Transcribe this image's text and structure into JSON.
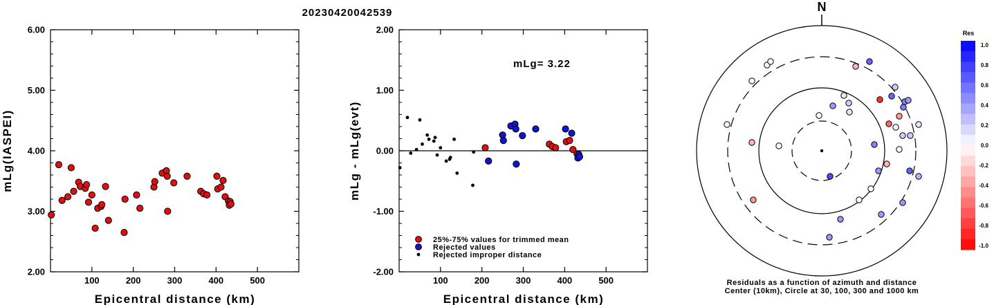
{
  "title": "20230420042539",
  "chart_data": [
    {
      "type": "scatter",
      "xlabel": "Epicentral distance (km)",
      "ylabel": "mLg(IASPEI)",
      "xlim": [
        0,
        600
      ],
      "ylim": [
        2.0,
        6.0
      ],
      "xticks": [
        "100",
        "200",
        "300",
        "400",
        "500"
      ],
      "yticks": [
        "2.00",
        "3.00",
        "4.00",
        "5.00",
        "6.00"
      ],
      "series": [
        {
          "color": "#e01010",
          "points": [
            [
              2,
              2.94
            ],
            [
              20,
              3.77
            ],
            [
              28,
              3.18
            ],
            [
              42,
              3.24
            ],
            [
              50,
              3.72
            ],
            [
              56,
              3.33
            ],
            [
              68,
              3.48
            ],
            [
              72,
              3.41
            ],
            [
              84,
              3.38
            ],
            [
              87,
              3.44
            ],
            [
              92,
              3.15
            ],
            [
              100,
              3.27
            ],
            [
              108,
              2.72
            ],
            [
              114,
              3.05
            ],
            [
              122,
              3.08
            ],
            [
              124,
              3.11
            ],
            [
              133,
              3.41
            ],
            [
              140,
              2.85
            ],
            [
              178,
              2.65
            ],
            [
              180,
              3.2
            ],
            [
              208,
              3.27
            ],
            [
              216,
              3.05
            ],
            [
              250,
              3.4
            ],
            [
              252,
              3.49
            ],
            [
              270,
              3.63
            ],
            [
              280,
              3.67
            ],
            [
              282,
              3.58
            ],
            [
              283,
              3.0
            ],
            [
              298,
              3.47
            ],
            [
              330,
              3.58
            ],
            [
              363,
              3.33
            ],
            [
              370,
              3.29
            ],
            [
              378,
              3.27
            ],
            [
              402,
              3.58
            ],
            [
              404,
              3.37
            ],
            [
              412,
              3.4
            ],
            [
              417,
              3.51
            ],
            [
              422,
              3.24
            ],
            [
              430,
              3.17
            ],
            [
              432,
              3.1
            ],
            [
              434,
              3.16
            ],
            [
              436,
              3.12
            ]
          ]
        }
      ]
    },
    {
      "type": "scatter",
      "xlabel": "Epicentral distance (km)",
      "ylabel": "mLg - mLg(evt)",
      "xlim": [
        0,
        600
      ],
      "ylim": [
        -2.0,
        2.0
      ],
      "xticks": [
        "100",
        "200",
        "300",
        "400",
        "500"
      ],
      "yticks": [
        "-2.00",
        "-1.00",
        "0.00",
        "1.00",
        "2.00"
      ],
      "annotation": "mLg= 3.22",
      "legend": [
        {
          "label": "25%-75% values for trimmed mean",
          "color": "#e01010"
        },
        {
          "label": "Rejected values",
          "color": "#1414d0"
        },
        {
          "label": "Rejected improper distance",
          "color": "#000000"
        }
      ],
      "series": [
        {
          "color": "#e01010",
          "points": [
            [
              208,
              0.05
            ],
            [
              363,
              0.11
            ],
            [
              370,
              0.07
            ],
            [
              378,
              0.05
            ],
            [
              404,
              0.15
            ],
            [
              412,
              0.17
            ],
            [
              420,
              0.02
            ],
            [
              430,
              -0.05
            ]
          ]
        },
        {
          "color": "#1414d0",
          "points": [
            [
              216,
              -0.17
            ],
            [
              250,
              0.26
            ],
            [
              252,
              0.17
            ],
            [
              270,
              0.41
            ],
            [
              280,
              0.44
            ],
            [
              282,
              0.36
            ],
            [
              283,
              -0.22
            ],
            [
              298,
              0.25
            ],
            [
              330,
              0.36
            ],
            [
              402,
              0.36
            ],
            [
              417,
              0.29
            ],
            [
              432,
              -0.12
            ],
            [
              434,
              -0.06
            ],
            [
              436,
              -0.1
            ]
          ]
        },
        {
          "color": "#000000",
          "points": [
            [
              2,
              -0.28
            ],
            [
              20,
              0.55
            ],
            [
              28,
              -0.04
            ],
            [
              42,
              0.02
            ],
            [
              50,
              0.51
            ],
            [
              56,
              0.11
            ],
            [
              68,
              0.26
            ],
            [
              72,
              0.19
            ],
            [
              84,
              0.16
            ],
            [
              87,
              0.22
            ],
            [
              92,
              -0.07
            ],
            [
              100,
              0.05
            ],
            [
              114,
              -0.17
            ],
            [
              122,
              -0.14
            ],
            [
              124,
              -0.11
            ],
            [
              133,
              0.19
            ],
            [
              140,
              -0.37
            ],
            [
              178,
              -0.57
            ],
            [
              180,
              -0.02
            ]
          ]
        }
      ]
    }
  ],
  "map": {
    "north_label": "N",
    "caption_line1": "Residuals as a function of azimuth and distance",
    "caption_line2": "Center (10km), Circle at 30, 100, 300 and 1000 km",
    "stations": [
      [
        1109,
        94,
        0.0
      ],
      [
        1114,
        89,
        0.0
      ],
      [
        1087,
        117,
        0.0
      ],
      [
        1051,
        180,
        0.05
      ],
      [
        1087,
        206,
        -0.3
      ],
      [
        1126,
        211,
        0.0
      ],
      [
        1184,
        167,
        0.0
      ],
      [
        1204,
        153,
        0.4
      ],
      [
        1220,
        138,
        0.1
      ],
      [
        1227,
        149,
        0.2
      ],
      [
        1228,
        162,
        0.1
      ],
      [
        1237,
        96,
        -0.3
      ],
      [
        1257,
        89,
        0.6
      ],
      [
        1272,
        144,
        -0.8
      ],
      [
        1289,
        139,
        0.6
      ],
      [
        1294,
        126,
        0.2
      ],
      [
        1300,
        168,
        -0.4
      ],
      [
        1306,
        155,
        0.5
      ],
      [
        1308,
        147,
        0.5
      ],
      [
        1313,
        145,
        0.4
      ],
      [
        1285,
        179,
        -0.6
      ],
      [
        1295,
        184,
        0.0
      ],
      [
        1305,
        196,
        0.2
      ],
      [
        1316,
        196,
        0.2
      ],
      [
        1328,
        180,
        0.1
      ],
      [
        1264,
        209,
        0.5
      ],
      [
        1300,
        216,
        0.0
      ],
      [
        1282,
        237,
        -0.3
      ],
      [
        1270,
        247,
        0.4
      ],
      [
        1315,
        247,
        0.6
      ],
      [
        1328,
        255,
        0.3
      ],
      [
        1200,
        255,
        0.7
      ],
      [
        1259,
        273,
        0.0
      ],
      [
        1242,
        289,
        0.0
      ],
      [
        1305,
        293,
        0.4
      ],
      [
        1274,
        310,
        0.4
      ],
      [
        1215,
        317,
        0.4
      ],
      [
        1089,
        289,
        -0.4
      ],
      [
        1199,
        343,
        0.4
      ]
    ]
  },
  "colorbar": {
    "title": "Res",
    "labels": [
      "1.0",
      "0.8",
      "0.6",
      "0.4",
      "0.2",
      "0.0",
      "-0.2",
      "-0.4",
      "-0.6",
      "-0.8",
      "-1.0"
    ]
  }
}
